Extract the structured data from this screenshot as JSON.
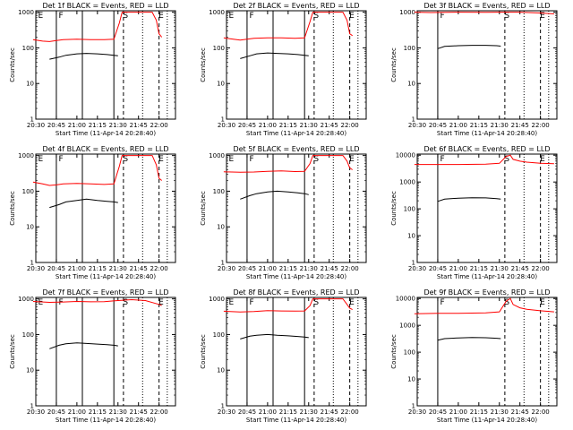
{
  "chart_data": [
    {
      "type": "line",
      "title": "Det 1f BLACK = Events, RED = LLD",
      "xlabel": "Start Time (11-Apr-14 20:28:40)",
      "ylabel": "Counts/sec",
      "x_ticks": [
        "20:30",
        "20:45",
        "21:00",
        "21:15",
        "21:30",
        "21:45",
        "22:00"
      ],
      "y_ticks": [
        "1",
        "10",
        "100",
        "1000"
      ],
      "yscale": "log",
      "ylim": [
        1,
        1100
      ],
      "xlim": [
        "20:30",
        "22:12"
      ],
      "markers": [
        "E",
        "F",
        "S",
        "E"
      ],
      "series": [
        {
          "name": "BLACK = Events",
          "color": "#000000",
          "x": [
            "20:40",
            "20:47",
            "20:52",
            "21:00",
            "21:07",
            "21:15",
            "21:22",
            "21:27",
            "21:30"
          ],
          "values": [
            48,
            55,
            62,
            68,
            70,
            68,
            65,
            62,
            60
          ]
        },
        {
          "name": "RED = LLD",
          "color": "#ff0000",
          "x": [
            "20:28",
            "20:35",
            "20:40",
            "20:45",
            "20:50",
            "21:00",
            "21:10",
            "21:20",
            "21:27",
            "21:31",
            "21:33",
            "21:35",
            "21:55",
            "21:58",
            "22:00",
            "22:02"
          ],
          "values": [
            170,
            155,
            150,
            160,
            170,
            175,
            170,
            170,
            175,
            500,
            1000,
            1000,
            1000,
            600,
            250,
            200
          ]
        }
      ]
    },
    {
      "type": "line",
      "title": "Det 2f BLACK = Events, RED = LLD",
      "xlabel": "Start Time (11-Apr-14 20:28:40)",
      "ylabel": "Counts/sec",
      "x_ticks": [
        "20:30",
        "20:45",
        "21:00",
        "21:15",
        "21:30",
        "21:45",
        "22:00"
      ],
      "y_ticks": [
        "1",
        "10",
        "100",
        "1000"
      ],
      "yscale": "log",
      "ylim": [
        1,
        1100
      ],
      "xlim": [
        "20:30",
        "22:12"
      ],
      "markers": [
        "E",
        "F",
        "S",
        "E"
      ],
      "series": [
        {
          "name": "BLACK = Events",
          "color": "#000000",
          "x": [
            "20:40",
            "20:47",
            "20:52",
            "21:00",
            "21:07",
            "21:15",
            "21:22",
            "21:27",
            "21:30"
          ],
          "values": [
            50,
            60,
            68,
            72,
            70,
            68,
            65,
            62,
            60
          ]
        },
        {
          "name": "RED = LLD",
          "color": "#ff0000",
          "x": [
            "20:28",
            "20:35",
            "20:40",
            "20:45",
            "20:50",
            "21:00",
            "21:10",
            "21:20",
            "21:27",
            "21:31",
            "21:33",
            "21:35",
            "21:55",
            "21:58",
            "22:00",
            "22:02"
          ],
          "values": [
            190,
            175,
            165,
            175,
            185,
            190,
            190,
            185,
            190,
            550,
            1000,
            1000,
            1000,
            600,
            250,
            220
          ]
        }
      ]
    },
    {
      "type": "line",
      "title": "Det 3f BLACK = Events, RED = LLD",
      "xlabel": "Start Time (11-Apr-14 20:28:40)",
      "ylabel": "Counts/sec",
      "x_ticks": [
        "20:30",
        "20:45",
        "21:00",
        "21:15",
        "21:30",
        "21:45",
        "22:00"
      ],
      "y_ticks": [
        "1",
        "10",
        "100",
        "1000"
      ],
      "yscale": "log",
      "ylim": [
        1,
        1100
      ],
      "xlim": [
        "20:30",
        "22:12"
      ],
      "markers": [
        "F",
        "S",
        "E"
      ],
      "series": [
        {
          "name": "BLACK = Events",
          "color": "#000000",
          "x": [
            "20:45",
            "20:50",
            "21:00",
            "21:10",
            "21:20",
            "21:28",
            "21:31"
          ],
          "values": [
            95,
            110,
            115,
            118,
            118,
            115,
            112
          ]
        },
        {
          "name": "RED = LLD",
          "color": "#ff0000",
          "x": [
            "20:28",
            "20:40",
            "21:00",
            "21:20",
            "21:30",
            "21:45",
            "22:00",
            "22:10"
          ],
          "values": [
            1000,
            980,
            1000,
            990,
            1000,
            1000,
            950,
            900
          ]
        }
      ]
    },
    {
      "type": "line",
      "title": "Det 4f BLACK = Events, RED = LLD",
      "xlabel": "Start Time (11-Apr-14 20:28:40)",
      "ylabel": "Counts/sec",
      "x_ticks": [
        "20:30",
        "20:45",
        "21:00",
        "21:15",
        "21:30",
        "21:45",
        "22:00"
      ],
      "y_ticks": [
        "1",
        "10",
        "100",
        "1000"
      ],
      "yscale": "log",
      "ylim": [
        1,
        1100
      ],
      "xlim": [
        "20:30",
        "22:12"
      ],
      "markers": [
        "E",
        "F",
        "S",
        "E"
      ],
      "series": [
        {
          "name": "BLACK = Events",
          "color": "#000000",
          "x": [
            "20:40",
            "20:47",
            "20:52",
            "21:00",
            "21:07",
            "21:15",
            "21:22",
            "21:27",
            "21:30"
          ],
          "values": [
            35,
            42,
            50,
            55,
            60,
            55,
            52,
            50,
            48
          ]
        },
        {
          "name": "RED = LLD",
          "color": "#ff0000",
          "x": [
            "20:28",
            "20:35",
            "20:40",
            "20:45",
            "20:50",
            "21:00",
            "21:10",
            "21:20",
            "21:27",
            "21:31",
            "21:33",
            "21:35",
            "21:55",
            "21:58",
            "22:00",
            "22:02"
          ],
          "values": [
            180,
            160,
            145,
            150,
            160,
            165,
            160,
            155,
            160,
            500,
            1000,
            1000,
            1000,
            550,
            230,
            200
          ]
        }
      ]
    },
    {
      "type": "line",
      "title": "Det 5f BLACK = Events, RED = LLD",
      "xlabel": "Start Time (11-Apr-14 20:28:40)",
      "ylabel": "Counts/sec",
      "x_ticks": [
        "20:30",
        "20:45",
        "21:00",
        "21:15",
        "21:30",
        "21:45",
        "22:00"
      ],
      "y_ticks": [
        "1",
        "10",
        "100",
        "1000"
      ],
      "yscale": "log",
      "ylim": [
        1,
        1100
      ],
      "xlim": [
        "20:30",
        "22:12"
      ],
      "markers": [
        "E",
        "F",
        "S",
        "E"
      ],
      "series": [
        {
          "name": "BLACK = Events",
          "color": "#000000",
          "x": [
            "20:40",
            "20:47",
            "20:52",
            "21:00",
            "21:07",
            "21:15",
            "21:22",
            "21:27",
            "21:30"
          ],
          "values": [
            60,
            75,
            85,
            95,
            100,
            95,
            90,
            85,
            80
          ]
        },
        {
          "name": "RED = LLD",
          "color": "#ff0000",
          "x": [
            "20:28",
            "20:40",
            "20:50",
            "21:00",
            "21:10",
            "21:20",
            "21:27",
            "21:31",
            "21:33",
            "21:35",
            "21:55",
            "21:58",
            "22:00",
            "22:02"
          ],
          "values": [
            350,
            340,
            345,
            360,
            370,
            355,
            360,
            600,
            1000,
            1000,
            1000,
            700,
            450,
            400
          ]
        }
      ]
    },
    {
      "type": "line",
      "title": "Det 6f BLACK = Events, RED = LLD",
      "xlabel": "Start Time (11-Apr-14 20:28:40)",
      "ylabel": "Counts/sec",
      "x_ticks": [
        "20:30",
        "20:45",
        "21:00",
        "21:15",
        "21:30",
        "21:45",
        "22:00"
      ],
      "y_ticks": [
        "1",
        "10",
        "100",
        "1000",
        "10000"
      ],
      "yscale": "log",
      "ylim": [
        1,
        11000
      ],
      "xlim": [
        "20:30",
        "22:12"
      ],
      "markers": [
        "F",
        "S",
        "E"
      ],
      "series": [
        {
          "name": "BLACK = Events",
          "color": "#000000",
          "x": [
            "20:45",
            "20:50",
            "21:00",
            "21:10",
            "21:20",
            "21:28",
            "21:31"
          ],
          "values": [
            190,
            230,
            250,
            260,
            255,
            240,
            230
          ]
        },
        {
          "name": "RED = LLD",
          "color": "#ff0000",
          "x": [
            "20:28",
            "20:45",
            "21:00",
            "21:20",
            "21:30",
            "21:35",
            "21:38",
            "21:40",
            "21:45",
            "21:50",
            "22:00",
            "22:10"
          ],
          "values": [
            4500,
            4500,
            4500,
            4600,
            5000,
            9000,
            10000,
            7000,
            6000,
            5500,
            5000,
            4800
          ]
        }
      ]
    },
    {
      "type": "line",
      "title": "Det 7f BLACK = Events, RED = LLD",
      "xlabel": "Start Time (11-Apr-14 20:28:40)",
      "ylabel": "Counts/sec",
      "x_ticks": [
        "20:30",
        "20:45",
        "21:00",
        "21:15",
        "21:30",
        "21:45",
        "22:00"
      ],
      "y_ticks": [
        "1",
        "10",
        "100",
        "1000"
      ],
      "yscale": "log",
      "ylim": [
        1,
        1100
      ],
      "xlim": [
        "20:30",
        "22:12"
      ],
      "markers": [
        "E",
        "F",
        "S",
        "E"
      ],
      "series": [
        {
          "name": "BLACK = Events",
          "color": "#000000",
          "x": [
            "20:40",
            "20:47",
            "20:52",
            "21:00",
            "21:07",
            "21:15",
            "21:22",
            "21:27",
            "21:30"
          ],
          "values": [
            40,
            50,
            55,
            58,
            56,
            54,
            52,
            50,
            48
          ]
        },
        {
          "name": "RED = LLD",
          "color": "#ff0000",
          "x": [
            "20:28",
            "20:40",
            "20:50",
            "21:00",
            "21:10",
            "21:20",
            "21:30",
            "21:40",
            "21:50",
            "22:00",
            "22:02"
          ],
          "values": [
            850,
            800,
            820,
            850,
            830,
            840,
            900,
            950,
            900,
            700,
            650
          ]
        }
      ]
    },
    {
      "type": "line",
      "title": "Det 8f BLACK = Events, RED = LLD",
      "xlabel": "Start Time (11-Apr-14 20:28:40)",
      "ylabel": "Counts/sec",
      "x_ticks": [
        "20:30",
        "20:45",
        "21:00",
        "21:15",
        "21:30",
        "21:45",
        "22:00"
      ],
      "y_ticks": [
        "1",
        "10",
        "100",
        "1000"
      ],
      "yscale": "log",
      "ylim": [
        1,
        1100
      ],
      "xlim": [
        "20:30",
        "22:12"
      ],
      "markers": [
        "E",
        "F",
        "S",
        "E"
      ],
      "series": [
        {
          "name": "BLACK = Events",
          "color": "#000000",
          "x": [
            "20:40",
            "20:47",
            "20:52",
            "21:00",
            "21:07",
            "21:15",
            "21:22",
            "21:27",
            "21:30"
          ],
          "values": [
            75,
            90,
            95,
            100,
            95,
            92,
            88,
            85,
            82
          ]
        },
        {
          "name": "RED = LLD",
          "color": "#ff0000",
          "x": [
            "20:28",
            "20:40",
            "20:50",
            "21:00",
            "21:10",
            "21:20",
            "21:27",
            "21:31",
            "21:33",
            "21:35",
            "21:55",
            "21:58",
            "22:00",
            "22:02"
          ],
          "values": [
            450,
            430,
            440,
            470,
            460,
            455,
            460,
            650,
            1000,
            1000,
            1000,
            700,
            550,
            500
          ]
        }
      ]
    },
    {
      "type": "line",
      "title": "Det 9f BLACK = Events, RED = LLD",
      "xlabel": "Start Time (11-Apr-14 20:28:40)",
      "ylabel": "Counts/sec",
      "x_ticks": [
        "20:30",
        "20:45",
        "21:00",
        "21:15",
        "21:30",
        "21:45",
        "22:00"
      ],
      "y_ticks": [
        "1",
        "10",
        "100",
        "1000",
        "10000"
      ],
      "yscale": "log",
      "ylim": [
        1,
        11000
      ],
      "xlim": [
        "20:30",
        "22:12"
      ],
      "markers": [
        "F",
        "S",
        "E"
      ],
      "series": [
        {
          "name": "BLACK = Events",
          "color": "#000000",
          "x": [
            "20:45",
            "20:50",
            "21:00",
            "21:10",
            "21:20",
            "21:28",
            "21:31"
          ],
          "values": [
            280,
            320,
            340,
            350,
            345,
            330,
            320
          ]
        },
        {
          "name": "RED = LLD",
          "color": "#ff0000",
          "x": [
            "20:28",
            "20:45",
            "21:00",
            "21:20",
            "21:30",
            "21:35",
            "21:38",
            "21:40",
            "21:45",
            "21:50",
            "22:00",
            "22:10"
          ],
          "values": [
            2700,
            2800,
            2800,
            2900,
            3200,
            8000,
            10000,
            6000,
            4500,
            4000,
            3500,
            3200
          ]
        }
      ]
    }
  ]
}
